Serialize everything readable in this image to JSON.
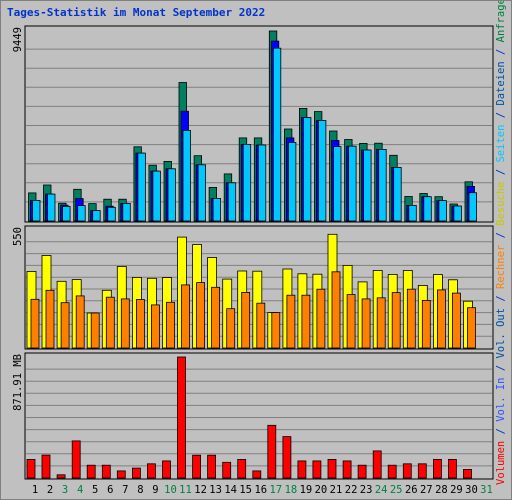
{
  "title": "Tages-Statistik im Monat September 2022",
  "chart_data": [
    {
      "type": "bar",
      "panel": "requests",
      "x": [
        1,
        2,
        3,
        4,
        5,
        6,
        7,
        8,
        9,
        10,
        11,
        12,
        13,
        14,
        15,
        16,
        17,
        18,
        19,
        20,
        21,
        22,
        23,
        24,
        25,
        26,
        27,
        28,
        29,
        30
      ],
      "weekend_days": [
        3,
        4,
        10,
        11,
        17,
        18,
        24,
        25,
        31
      ],
      "ymax_label": "9449",
      "ylim": [
        0,
        9449
      ],
      "series": [
        {
          "name": "Anfragen",
          "color": "#008060",
          "values": [
            1390,
            1780,
            880,
            1570,
            860,
            1080,
            1080,
            3670,
            2760,
            2950,
            6850,
            3230,
            1660,
            2330,
            4110,
            4110,
            9400,
            4550,
            5570,
            5410,
            4450,
            4030,
            3840,
            3850,
            3250,
            1210,
            1360,
            1200,
            840,
            1940
          ]
        },
        {
          "name": "Dateien",
          "color": "#0000ff",
          "values": [
            1020,
            1330,
            780,
            1110,
            520,
            730,
            870,
            3360,
            2470,
            2580,
            5430,
            2780,
            1120,
            1890,
            3790,
            3760,
            8900,
            4110,
            5120,
            4970,
            3980,
            3700,
            3510,
            3540,
            2650,
            770,
            1200,
            1010,
            740,
            1710
          ]
        },
        {
          "name": "Seiten",
          "color": "#00c8ff",
          "values": [
            1020,
            1330,
            720,
            760,
            520,
            680,
            870,
            3360,
            2470,
            2580,
            4480,
            2780,
            1120,
            1890,
            3790,
            3760,
            8550,
            3890,
            5120,
            4970,
            3680,
            3700,
            3510,
            3540,
            2650,
            770,
            1200,
            1010,
            740,
            1400
          ]
        }
      ]
    },
    {
      "type": "bar",
      "panel": "visits",
      "x": [
        1,
        2,
        3,
        4,
        5,
        6,
        7,
        8,
        9,
        10,
        11,
        12,
        13,
        14,
        15,
        16,
        17,
        18,
        19,
        20,
        21,
        22,
        23,
        24,
        25,
        26,
        27,
        28,
        29,
        30
      ],
      "ymax_label": "550",
      "ylim": [
        0,
        550
      ],
      "series": [
        {
          "name": "Besuche",
          "color": "#ffff00",
          "values": [
            357,
            431,
            311,
            319,
            163,
            269,
            380,
            329,
            325,
            328,
            517,
            482,
            422,
            321,
            359,
            358,
            165,
            368,
            346,
            344,
            530,
            385,
            308,
            361,
            343,
            361,
            292,
            342,
            318,
            218
          ]
        },
        {
          "name": "Rechner",
          "color": "#ff8000",
          "values": [
            227,
            269,
            211,
            243,
            163,
            237,
            229,
            226,
            201,
            213,
            294,
            305,
            283,
            183,
            259,
            209,
            165,
            246,
            246,
            274,
            355,
            249,
            229,
            234,
            258,
            274,
            222,
            271,
            256,
            188
          ]
        }
      ]
    },
    {
      "type": "bar",
      "panel": "volume",
      "x": [
        1,
        2,
        3,
        4,
        5,
        6,
        7,
        8,
        9,
        10,
        11,
        12,
        13,
        14,
        15,
        16,
        17,
        18,
        19,
        20,
        21,
        22,
        23,
        24,
        25,
        26,
        27,
        28,
        29,
        30
      ],
      "ymax_label": "871.91 MB",
      "ylim": [
        0,
        871.91
      ],
      "series": [
        {
          "name": "Volumen",
          "color": "#ff0000",
          "values": [
            134,
            165,
            23,
            267,
            92,
            92,
            51,
            71,
            102,
            123,
            872,
            164,
            164,
            113,
            134,
            51,
            380,
            298,
            123,
            123,
            134,
            123,
            92,
            195,
            92,
            102,
            102,
            134,
            134,
            62
          ]
        }
      ]
    }
  ],
  "day_labels": [
    "1",
    "2",
    "3",
    "4",
    "5",
    "6",
    "7",
    "8",
    "9",
    "10",
    "11",
    "12",
    "13",
    "14",
    "15",
    "16",
    "17",
    "18",
    "19",
    "20",
    "21",
    "22",
    "23",
    "24",
    "25",
    "26",
    "27",
    "28",
    "29",
    "30",
    "31"
  ],
  "legend": {
    "volumen": "Volumen",
    "slash1": " / ",
    "vol_in": "Vol. In",
    "slash2": " / ",
    "vol_out": "Vol. Out",
    "slash3": " / ",
    "rechner": "Rechner",
    "slash4": " / ",
    "besuche": "Besuche",
    "slash5": " / ",
    "seiten": "Seiten",
    "slash6": " / ",
    "dateien": "Dateien",
    "slash7": " / ",
    "anfragen": "Anfragen"
  },
  "colors": {
    "frame_bg": "#c0c0c0",
    "panel_bg": "#c0c0c0",
    "gridline": "#808080",
    "title": "#0033cc",
    "weekday_label": "#000000",
    "weekend_label": "#008040",
    "legend_volumen": "#ff0000",
    "legend_vol_in": "#3050ff",
    "legend_vol_out": "#0050a0",
    "legend_rechner": "#ff8000",
    "legend_besuche": "#c8c800",
    "legend_seiten": "#00c8ff",
    "legend_dateien": "#0050a0",
    "legend_anfragen": "#008040",
    "slash": "#0033cc"
  }
}
